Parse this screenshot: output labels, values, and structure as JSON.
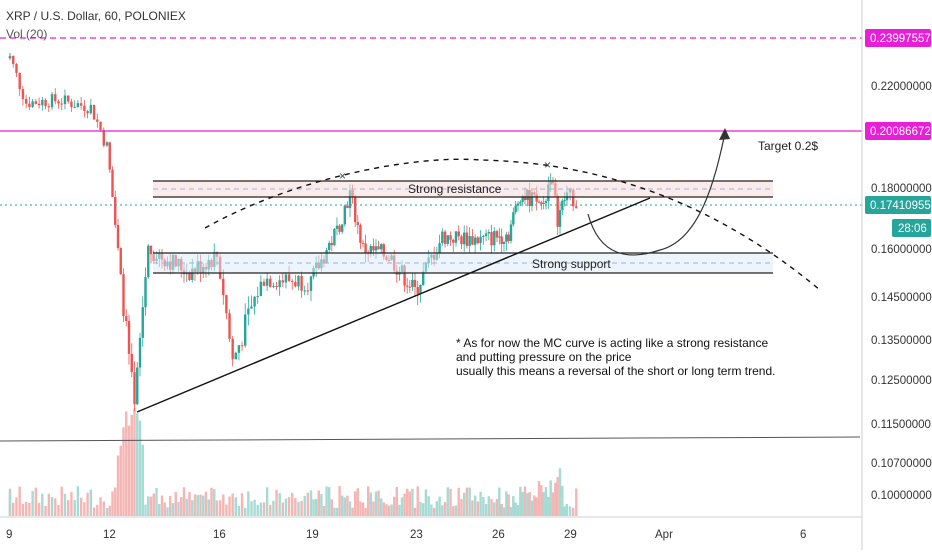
{
  "header": {
    "symbol": "XRP / U.S. Dollar, 60, POLONIEX",
    "volume_indicator": "Vol (20)"
  },
  "colors": {
    "up": "#26a69a",
    "down": "#ef5350",
    "vol_up": "#a6dad5",
    "vol_down": "#f5b5b3",
    "target_line": "#e91ed8",
    "current_price": "#26a69a",
    "annotation": "#111111"
  },
  "chart_data": {
    "type": "candlestick",
    "title": "XRP / U.S. Dollar, 60, POLONIEX",
    "y_axis": {
      "position": "right",
      "ticks": [
        "0.22000000",
        "0.18000000",
        "0.16000000",
        "0.14500000",
        "0.13500000",
        "0.12500000",
        "0.11500000",
        "0.10700000",
        "0.10000000"
      ]
    },
    "x_axis": {
      "ticks": [
        "9",
        "12",
        "16",
        "19",
        "23",
        "26",
        "29",
        "Apr",
        "6"
      ]
    },
    "price_labels": [
      {
        "value": "0.23997557",
        "kind": "dashed-target"
      },
      {
        "value": "0.20086672",
        "kind": "target"
      },
      {
        "value": "0.17410955",
        "kind": "current"
      },
      {
        "value": "28:06",
        "kind": "countdown"
      }
    ],
    "ohlc_guide": [
      {
        "day": "9",
        "price": 0.232
      },
      {
        "day": "9.5",
        "price": 0.213
      },
      {
        "day": "10.5",
        "price": 0.214
      },
      {
        "day": "11.5",
        "price": 0.211
      },
      {
        "day": "12",
        "price": 0.195
      },
      {
        "day": "12.5",
        "price": 0.15
      },
      {
        "day": "13",
        "price": 0.118
      },
      {
        "day": "13.5",
        "price": 0.16
      },
      {
        "day": "15",
        "price": 0.153
      },
      {
        "day": "16",
        "price": 0.158
      },
      {
        "day": "16.5",
        "price": 0.13
      },
      {
        "day": "17.5",
        "price": 0.151
      },
      {
        "day": "19",
        "price": 0.15
      },
      {
        "day": "20",
        "price": 0.166
      },
      {
        "day": "20.5",
        "price": 0.178
      },
      {
        "day": "21",
        "price": 0.16
      },
      {
        "day": "22",
        "price": 0.158
      },
      {
        "day": "23",
        "price": 0.147
      },
      {
        "day": "24",
        "price": 0.164
      },
      {
        "day": "25.5",
        "price": 0.163
      },
      {
        "day": "26.5",
        "price": 0.165
      },
      {
        "day": "27",
        "price": 0.178
      },
      {
        "day": "28",
        "price": 0.174
      },
      {
        "day": "28.3",
        "price": 0.185
      },
      {
        "day": "28.6",
        "price": 0.17
      },
      {
        "day": "29",
        "price": 0.178
      },
      {
        "day": "29.3",
        "price": 0.174
      }
    ],
    "annotations": {
      "strong_resistance": "Strong resistance",
      "strong_support": "Strong support",
      "target": "Target 0.2$",
      "note_lines": [
        "* As for now the MC curve is acting like a strong resistance",
        "and putting pressure on the price",
        "usually this means a reversal of the short or long term trend."
      ]
    },
    "legend": "none",
    "grid": false
  }
}
